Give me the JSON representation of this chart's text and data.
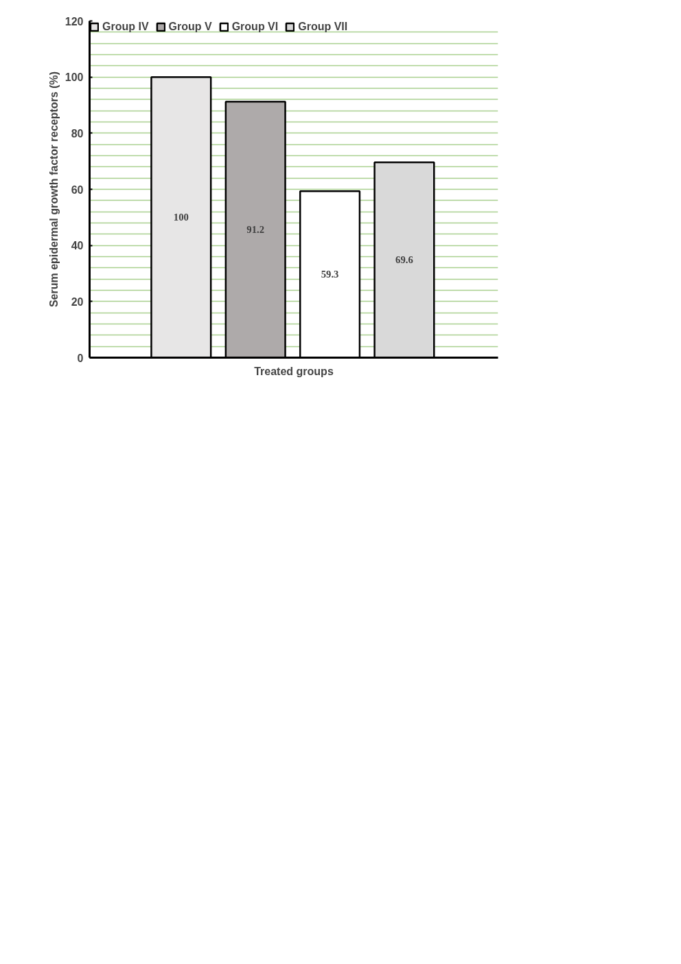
{
  "chart_data": {
    "type": "bar",
    "xlabel": "Treated groups",
    "ylabel": "Serum epidermal growth factor receptors (%)",
    "categories": [
      null,
      null,
      null,
      null
    ],
    "series": [
      {
        "name": "Group IV",
        "color": "#e7e6e6",
        "values": [
          100,
          null,
          null,
          null
        ]
      },
      {
        "name": "Group V",
        "color": "#aeaaaa",
        "values": [
          null,
          91.2,
          null,
          null
        ]
      },
      {
        "name": "Group VI",
        "color": "#ffffff",
        "values": [
          null,
          null,
          59.3,
          null
        ]
      },
      {
        "name": "Group VII",
        "color": "#d9d9d9",
        "values": [
          null,
          null,
          null,
          69.6
        ]
      }
    ],
    "ylim": [
      0,
      120
    ],
    "yticks": [
      0,
      20,
      40,
      60,
      80,
      100,
      120
    ],
    "grid": "y",
    "legend": "top",
    "data_labels": true
  }
}
